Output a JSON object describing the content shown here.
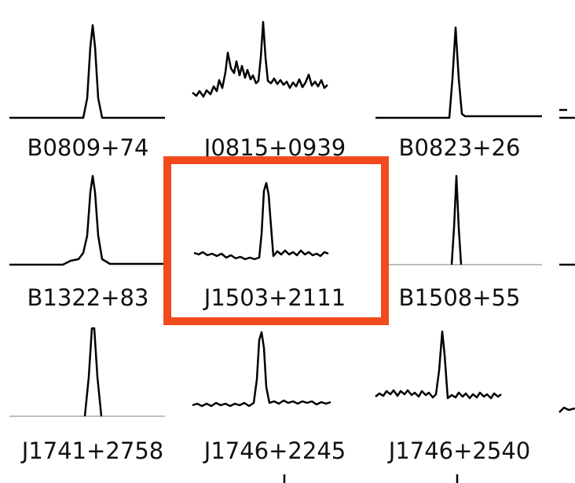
{
  "grid": {
    "rows": [
      [
        "B0809+74",
        "J0815+0939",
        "B0823+26"
      ],
      [
        "B1322+83",
        "J1503+2111",
        "B1508+55"
      ],
      [
        "J1741+2758",
        "J1746+2245",
        "J1746+2540"
      ]
    ]
  }
}
